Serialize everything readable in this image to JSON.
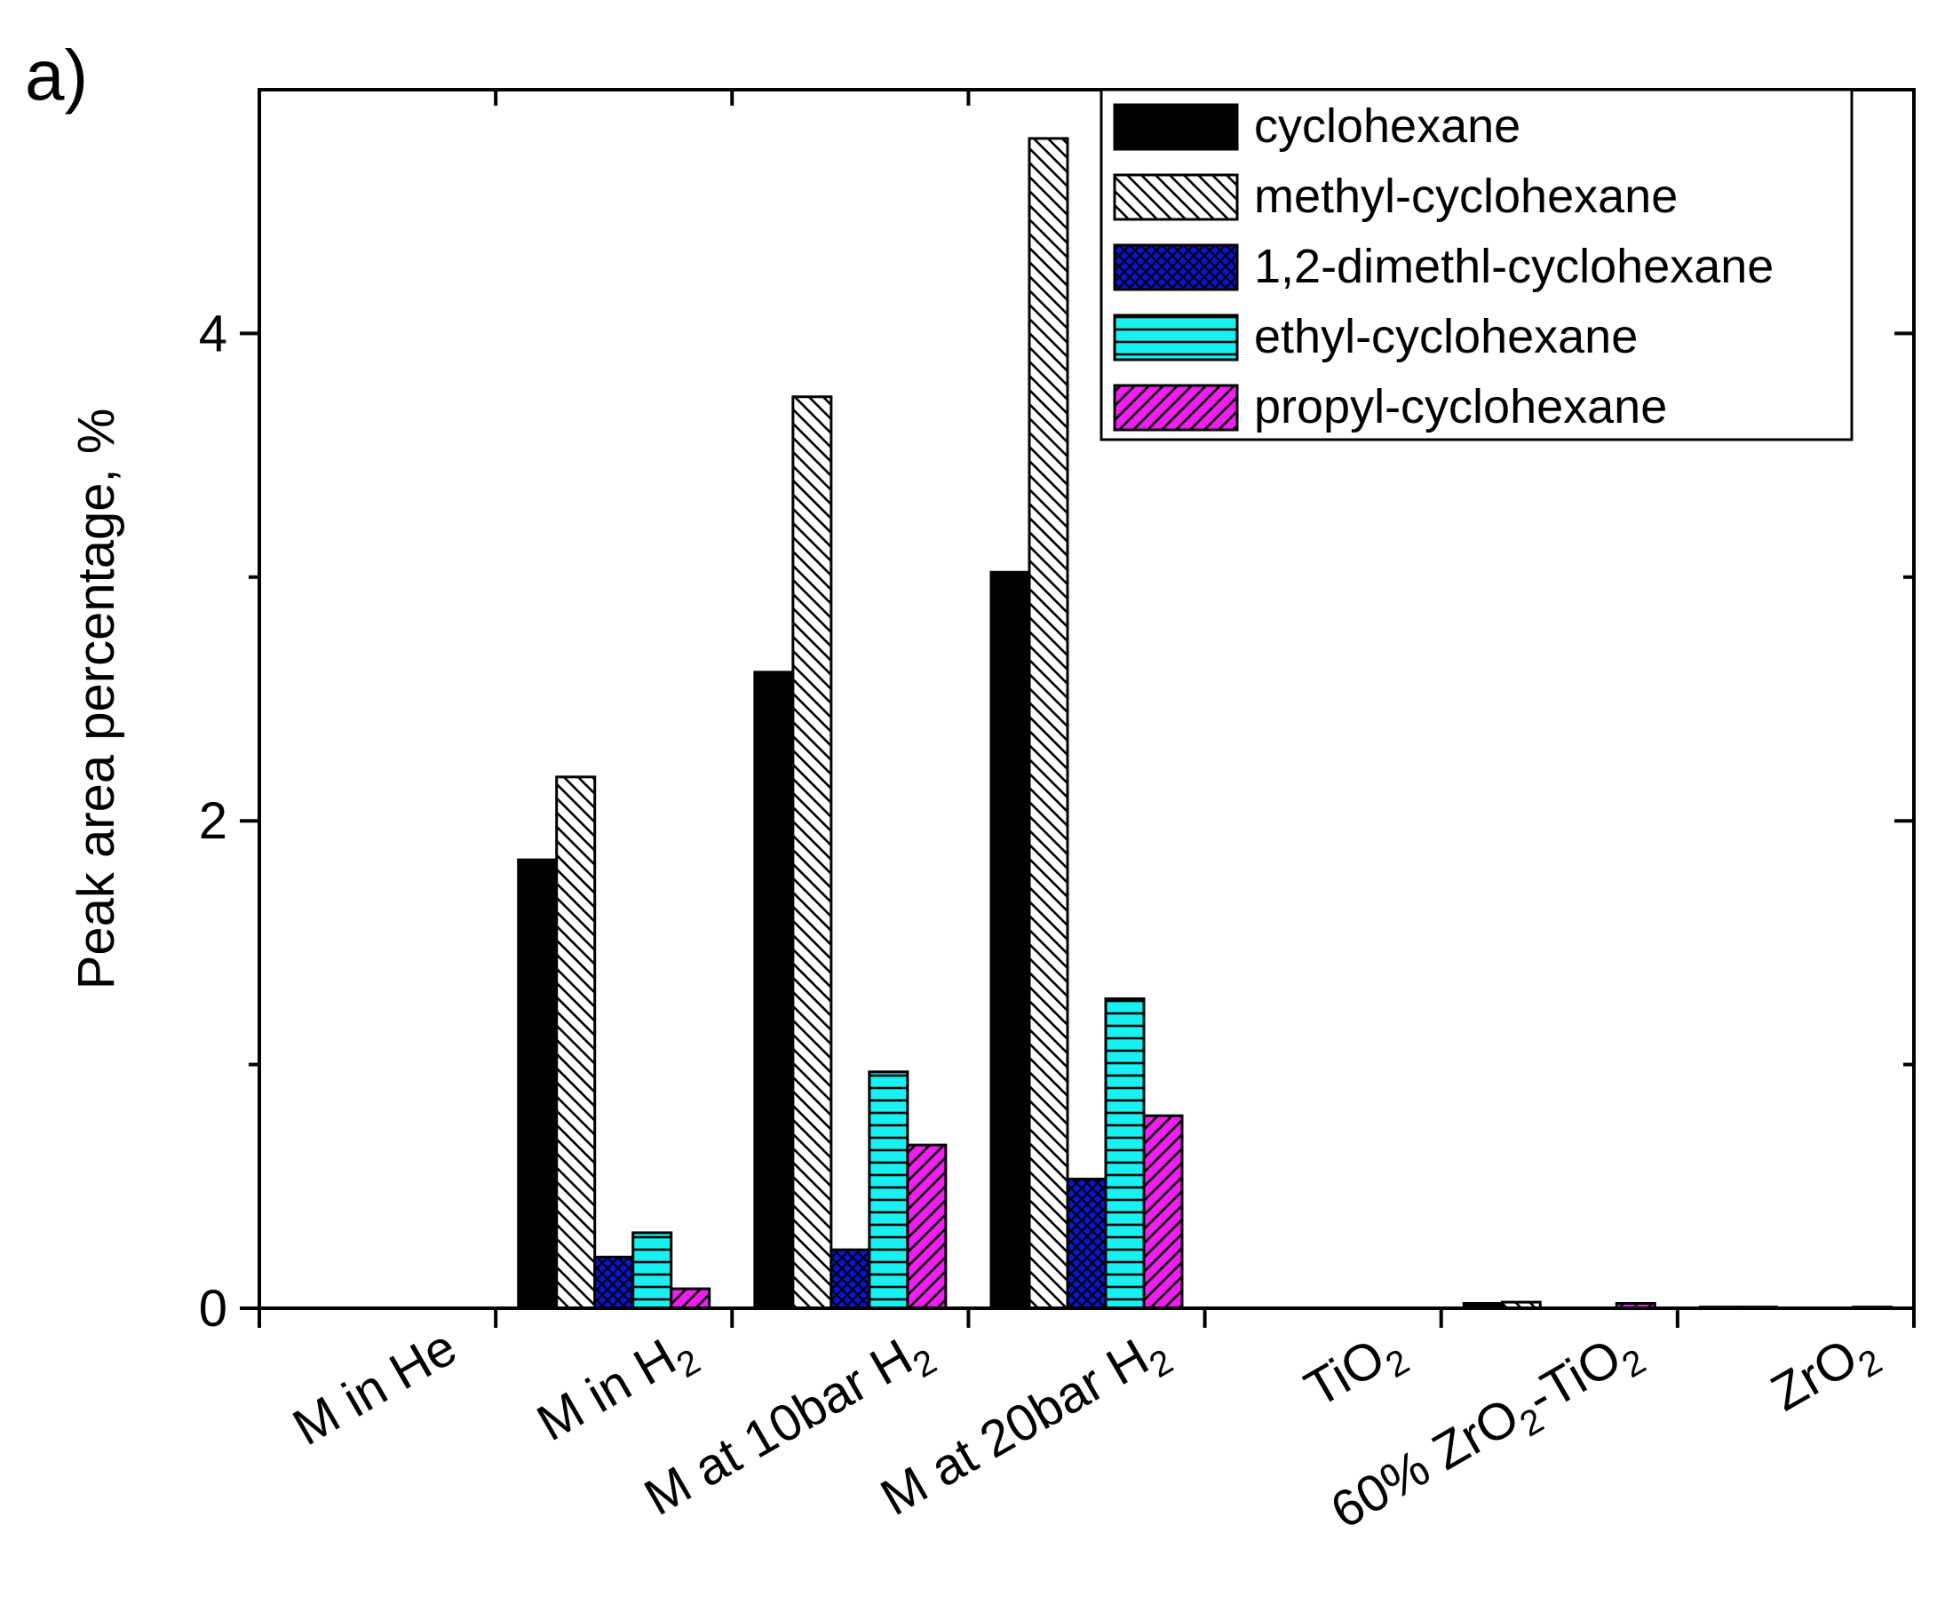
{
  "panel_label": "a)",
  "chart_data": {
    "type": "bar",
    "ylabel": "Peak area percentage, %",
    "xlabel": "",
    "ylim": [
      0,
      5.0
    ],
    "yticks": [
      0,
      2,
      4
    ],
    "grid": false,
    "legend_position": "top-right",
    "categories": [
      {
        "parts": [
          {
            "t": "M in He"
          }
        ]
      },
      {
        "parts": [
          {
            "t": "M in H"
          },
          {
            "t": "2",
            "sub": true
          }
        ]
      },
      {
        "parts": [
          {
            "t": "M at 10bar H"
          },
          {
            "t": "2",
            "sub": true
          }
        ]
      },
      {
        "parts": [
          {
            "t": "M at 20bar H"
          },
          {
            "t": "2",
            "sub": true
          }
        ]
      },
      {
        "parts": [
          {
            "t": "TiO"
          },
          {
            "t": "2",
            "sub": true
          }
        ]
      },
      {
        "parts": [
          {
            "t": "60% ZrO"
          },
          {
            "t": "2",
            "sub": true
          },
          {
            "t": "-TiO"
          },
          {
            "t": "2",
            "sub": true
          }
        ]
      },
      {
        "parts": [
          {
            "t": "ZrO"
          },
          {
            "t": "2",
            "sub": true
          }
        ]
      }
    ],
    "series": [
      {
        "name": "cyclohexane",
        "color": "#000000",
        "pattern": "solid",
        "values": [
          0,
          1.84,
          2.61,
          3.02,
          0,
          0.02,
          0.005
        ]
      },
      {
        "name": "methyl-cyclohexane",
        "color": "#ffffff",
        "pattern": "diag-back",
        "values": [
          0,
          2.18,
          3.74,
          4.8,
          0,
          0.025,
          0.005
        ]
      },
      {
        "name": "1,2-dimethl-cyclohexane",
        "color": "#0a14d6",
        "pattern": "crosshatch",
        "values": [
          0,
          0.21,
          0.24,
          0.53,
          0,
          0,
          0
        ]
      },
      {
        "name": "ethyl-cyclohexane",
        "color": "#17f1f1",
        "pattern": "horizontal",
        "values": [
          0,
          0.31,
          0.97,
          1.27,
          0,
          0,
          0
        ]
      },
      {
        "name": "propyl-cyclohexane",
        "color": "#f01ef0",
        "pattern": "diag-fwd",
        "values": [
          0,
          0.08,
          0.67,
          0.79,
          0,
          0.02,
          0.005
        ]
      }
    ]
  }
}
